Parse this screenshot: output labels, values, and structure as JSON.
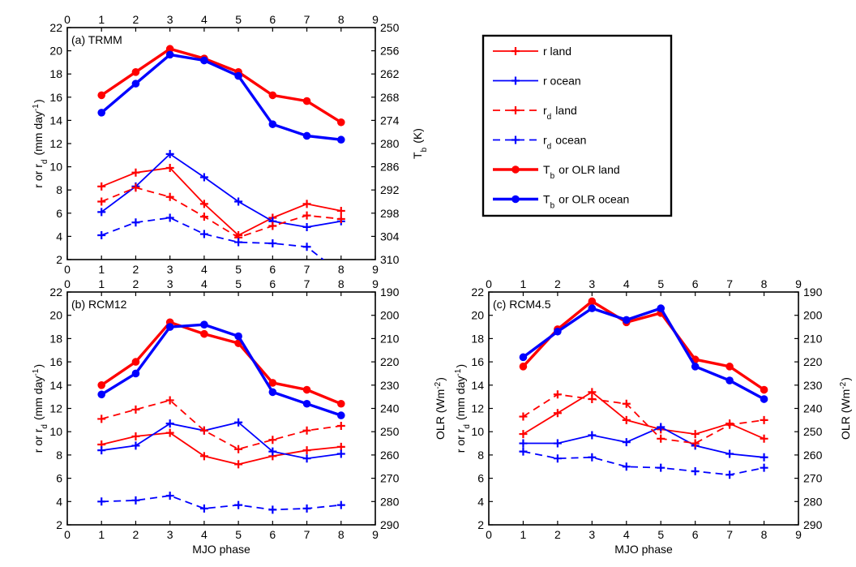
{
  "figure": {
    "legend": {
      "placement": "upper-right",
      "entries": [
        {
          "label": "r land",
          "color": "#ff0000",
          "style": "solid-plus"
        },
        {
          "label": "r ocean",
          "color": "#0000ff",
          "style": "solid-plus"
        },
        {
          "label": "r",
          "sub": "d",
          "rest": " land",
          "color": "#ff0000",
          "style": "dashed-plus"
        },
        {
          "label": "r",
          "sub": "d",
          "rest": " ocean",
          "color": "#0000ff",
          "style": "dashed-plus"
        },
        {
          "label": "T",
          "sub": "b",
          "rest": " or OLR land",
          "color": "#ff0000",
          "style": "thick-dot"
        },
        {
          "label": "T",
          "sub": "b",
          "rest": " or OLR ocean",
          "color": "#0000ff",
          "style": "thick-dot"
        }
      ]
    }
  },
  "chart_data": [
    {
      "type": "line",
      "title": "(a) TRMM",
      "x": [
        1,
        2,
        3,
        4,
        5,
        6,
        7,
        8
      ],
      "xlim": [
        0,
        9
      ],
      "xticks": [
        0,
        1,
        2,
        3,
        4,
        5,
        6,
        7,
        8,
        9
      ],
      "xlabel": "",
      "ylim": [
        2,
        22
      ],
      "yticks": [
        2,
        4,
        6,
        8,
        10,
        12,
        14,
        16,
        18,
        20,
        22
      ],
      "ylabel": {
        "base": "r or r",
        "sub": "d",
        "mid": " (mm day",
        "sup": "-1",
        "end": ")"
      },
      "y2lim": [
        310,
        250
      ],
      "y2ticks": [
        250,
        256,
        262,
        268,
        274,
        280,
        286,
        292,
        298,
        304,
        310
      ],
      "y2label": {
        "base": "T",
        "sub": "b",
        "rest": " (K)"
      },
      "series": [
        {
          "name": "r land",
          "axis": "left",
          "color": "#ff0000",
          "style": "solid-plus",
          "values": [
            8.3,
            9.5,
            9.9,
            6.8,
            4.1,
            5.6,
            6.8,
            6.2
          ]
        },
        {
          "name": "r ocean",
          "axis": "left",
          "color": "#0000ff",
          "style": "solid-plus",
          "values": [
            6.1,
            8.3,
            11.1,
            9.1,
            7.0,
            5.3,
            4.8,
            5.3
          ]
        },
        {
          "name": "rd land",
          "axis": "left",
          "color": "#ff0000",
          "style": "dashed-plus",
          "values": [
            7.0,
            8.2,
            7.4,
            5.7,
            3.9,
            4.9,
            5.8,
            5.5
          ]
        },
        {
          "name": "rd ocean",
          "axis": "left",
          "color": "#0000ff",
          "style": "dashed-plus",
          "values": [
            4.1,
            5.2,
            5.6,
            4.2,
            3.5,
            3.4,
            3.1,
            0.8
          ]
        },
        {
          "name": "Tb land",
          "axis": "right",
          "color": "#ff0000",
          "style": "thick-dot",
          "values": [
            267.5,
            261.5,
            255.5,
            258.0,
            261.5,
            267.5,
            269.0,
            274.5
          ]
        },
        {
          "name": "Tb ocean",
          "axis": "right",
          "color": "#0000ff",
          "style": "thick-dot",
          "values": [
            272.0,
            264.5,
            257.0,
            258.5,
            262.5,
            275.0,
            278.0,
            279.0
          ]
        }
      ]
    },
    {
      "type": "line",
      "title": "(b) RCM12",
      "x": [
        1,
        2,
        3,
        4,
        5,
        6,
        7,
        8
      ],
      "xlim": [
        0,
        9
      ],
      "xticks": [
        0,
        1,
        2,
        3,
        4,
        5,
        6,
        7,
        8,
        9
      ],
      "xlabel": "MJO phase",
      "ylim": [
        2,
        22
      ],
      "yticks": [
        2,
        4,
        6,
        8,
        10,
        12,
        14,
        16,
        18,
        20,
        22
      ],
      "ylabel": {
        "base": "r or r",
        "sub": "d",
        "mid": " (mm day",
        "sup": "-1",
        "end": ")"
      },
      "y2lim": [
        290,
        190
      ],
      "y2ticks": [
        190,
        200,
        210,
        220,
        230,
        240,
        250,
        260,
        270,
        280,
        290
      ],
      "y2label": {
        "base": "OLR (Wm",
        "sup": "-2",
        "end": ")"
      },
      "series": [
        {
          "name": "r land",
          "axis": "left",
          "color": "#ff0000",
          "style": "solid-plus",
          "values": [
            8.9,
            9.6,
            9.9,
            7.9,
            7.2,
            7.9,
            8.4,
            8.7
          ]
        },
        {
          "name": "r ocean",
          "axis": "left",
          "color": "#0000ff",
          "style": "solid-plus",
          "values": [
            8.4,
            8.8,
            10.7,
            10.1,
            10.8,
            8.3,
            7.7,
            8.1
          ]
        },
        {
          "name": "rd land",
          "axis": "left",
          "color": "#ff0000",
          "style": "dashed-plus",
          "values": [
            11.1,
            11.9,
            12.7,
            10.1,
            8.5,
            9.3,
            10.1,
            10.5
          ]
        },
        {
          "name": "rd ocean",
          "axis": "left",
          "color": "#0000ff",
          "style": "dashed-plus",
          "values": [
            4.0,
            4.1,
            4.5,
            3.4,
            3.7,
            3.3,
            3.4,
            3.7
          ]
        },
        {
          "name": "OLR land",
          "axis": "right",
          "color": "#ff0000",
          "style": "thick-dot",
          "values": [
            230,
            220,
            203,
            208,
            212,
            229,
            232,
            238
          ]
        },
        {
          "name": "OLR ocean",
          "axis": "right",
          "color": "#0000ff",
          "style": "thick-dot",
          "values": [
            234,
            225,
            205,
            204,
            209,
            233,
            238,
            243
          ]
        }
      ]
    },
    {
      "type": "line",
      "title": "(c) RCM4.5",
      "x": [
        1,
        2,
        3,
        4,
        5,
        6,
        7,
        8
      ],
      "xlim": [
        0,
        9
      ],
      "xticks": [
        0,
        1,
        2,
        3,
        4,
        5,
        6,
        7,
        8,
        9
      ],
      "xlabel": "MJO phase",
      "ylim": [
        2,
        22
      ],
      "yticks": [
        2,
        4,
        6,
        8,
        10,
        12,
        14,
        16,
        18,
        20,
        22
      ],
      "ylabel": {
        "base": "r or r",
        "sub": "d",
        "mid": " (mm day",
        "sup": "-1",
        "end": ")"
      },
      "y2lim": [
        290,
        190
      ],
      "y2ticks": [
        190,
        200,
        210,
        220,
        230,
        240,
        250,
        260,
        270,
        280,
        290
      ],
      "y2label": {
        "base": "OLR (Wm",
        "sup": "-2",
        "end": ")"
      },
      "series": [
        {
          "name": "r land",
          "axis": "left",
          "color": "#ff0000",
          "style": "solid-plus",
          "values": [
            9.8,
            11.6,
            13.4,
            11.0,
            10.2,
            9.8,
            10.7,
            9.4
          ]
        },
        {
          "name": "r ocean",
          "axis": "left",
          "color": "#0000ff",
          "style": "solid-plus",
          "values": [
            9.0,
            9.0,
            9.7,
            9.1,
            10.4,
            8.8,
            8.1,
            7.8
          ]
        },
        {
          "name": "rd land",
          "axis": "left",
          "color": "#ff0000",
          "style": "dashed-plus",
          "values": [
            11.3,
            13.2,
            12.8,
            12.4,
            9.4,
            9.0,
            10.6,
            11.0
          ]
        },
        {
          "name": "rd ocean",
          "axis": "left",
          "color": "#0000ff",
          "style": "dashed-plus",
          "values": [
            8.3,
            7.7,
            7.8,
            7.0,
            6.9,
            6.6,
            6.3,
            6.9
          ]
        },
        {
          "name": "OLR land",
          "axis": "right",
          "color": "#ff0000",
          "style": "thick-dot",
          "values": [
            222,
            206,
            194,
            203,
            199,
            219,
            222,
            232
          ]
        },
        {
          "name": "OLR ocean",
          "axis": "right",
          "color": "#0000ff",
          "style": "thick-dot",
          "values": [
            218,
            207,
            197,
            202,
            197,
            222,
            228,
            236
          ]
        }
      ]
    }
  ]
}
